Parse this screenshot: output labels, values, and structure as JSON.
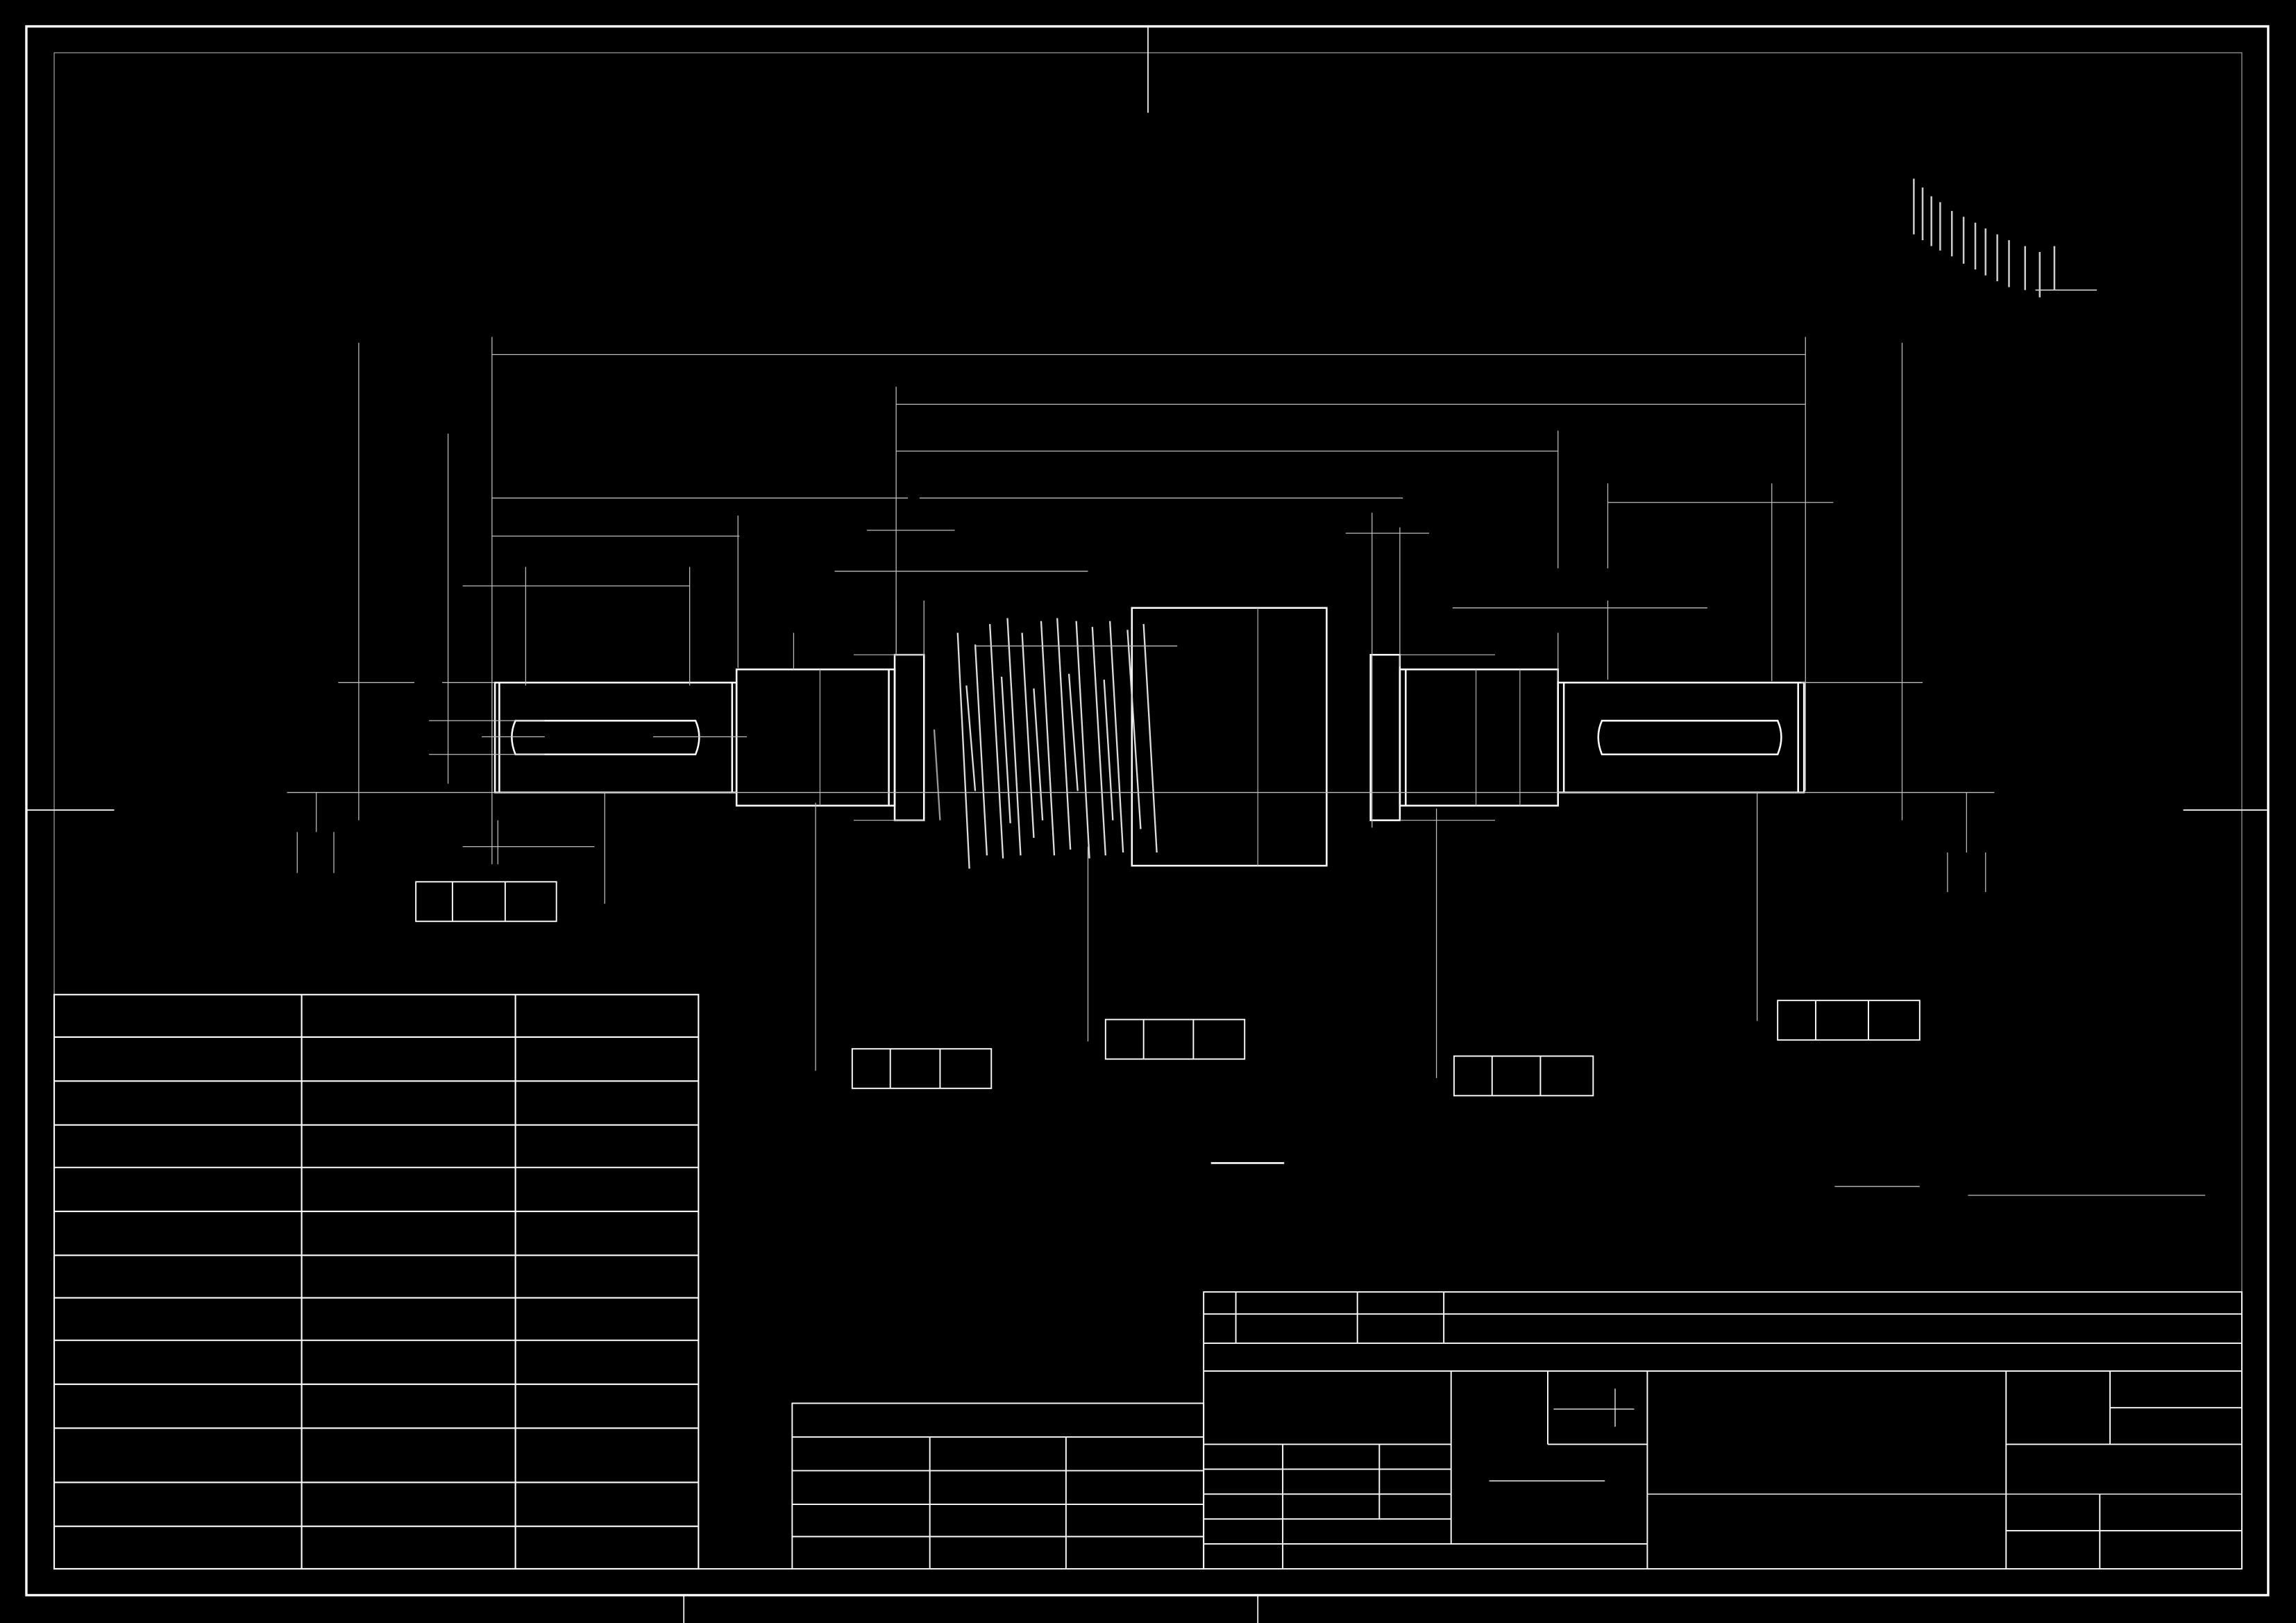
{
  "drawing": {
    "background": "#000000",
    "stroke_color": "#ffffff",
    "dim_color": "#bdbdbd",
    "text_content": []
  },
  "tables": {
    "spec_table": {
      "rows": 13,
      "columns": 3
    },
    "param_table": {
      "rows": 5,
      "columns": 3
    },
    "title_block": {
      "visible_text": []
    }
  },
  "roughness_marks": {
    "count": 5
  },
  "part": {
    "description_visible": false
  }
}
